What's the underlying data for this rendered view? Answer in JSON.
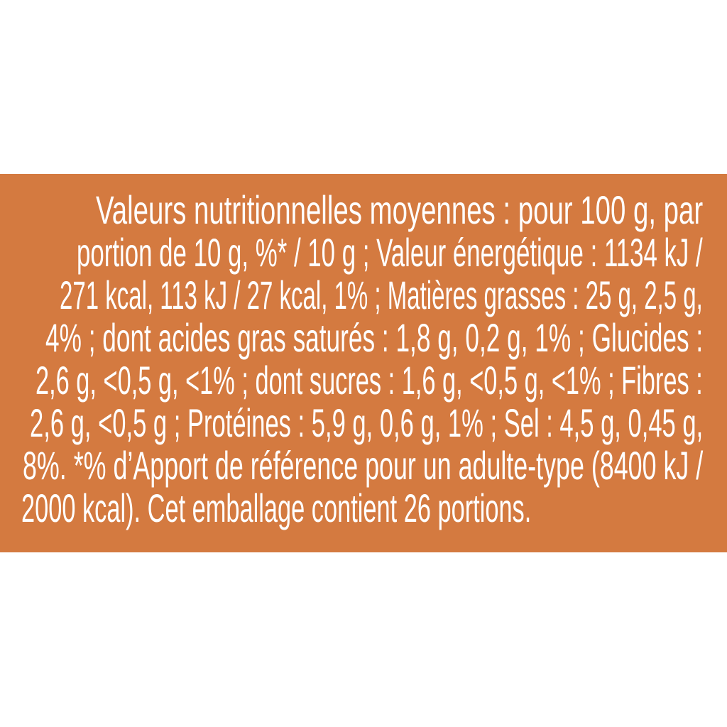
{
  "colors": {
    "background": "#D47A40",
    "text": "#FFFFFF"
  },
  "nutrition_text": {
    "lines": [
      "Valeurs nutritionnelles moyennes : pour 100 g, par",
      "portion de 10 g, %* / 10 g ; Valeur énergétique : 1134 kJ /",
      "271 kcal, 113 kJ / 27 kcal, 1% ; Matières grasses : 25 g, 2,5 g,",
      "4% ; dont acides gras saturés : 1,8 g, 0,2 g, 1% ; Glucides :",
      "2,6 g, <0,5 g, <1% ; dont sucres : 1,6 g, <0,5 g, <1% ; Fibres :",
      "2,6 g, <0,5 g ; Protéines : 5,9 g, 0,6 g, 1% ; Sel : 4,5 g, 0,45 g,",
      "8%. *% d’Apport de référence pour un adulte-type (8400 kJ /",
      "2000 kcal). Cet emballage contient 26 portions."
    ]
  }
}
